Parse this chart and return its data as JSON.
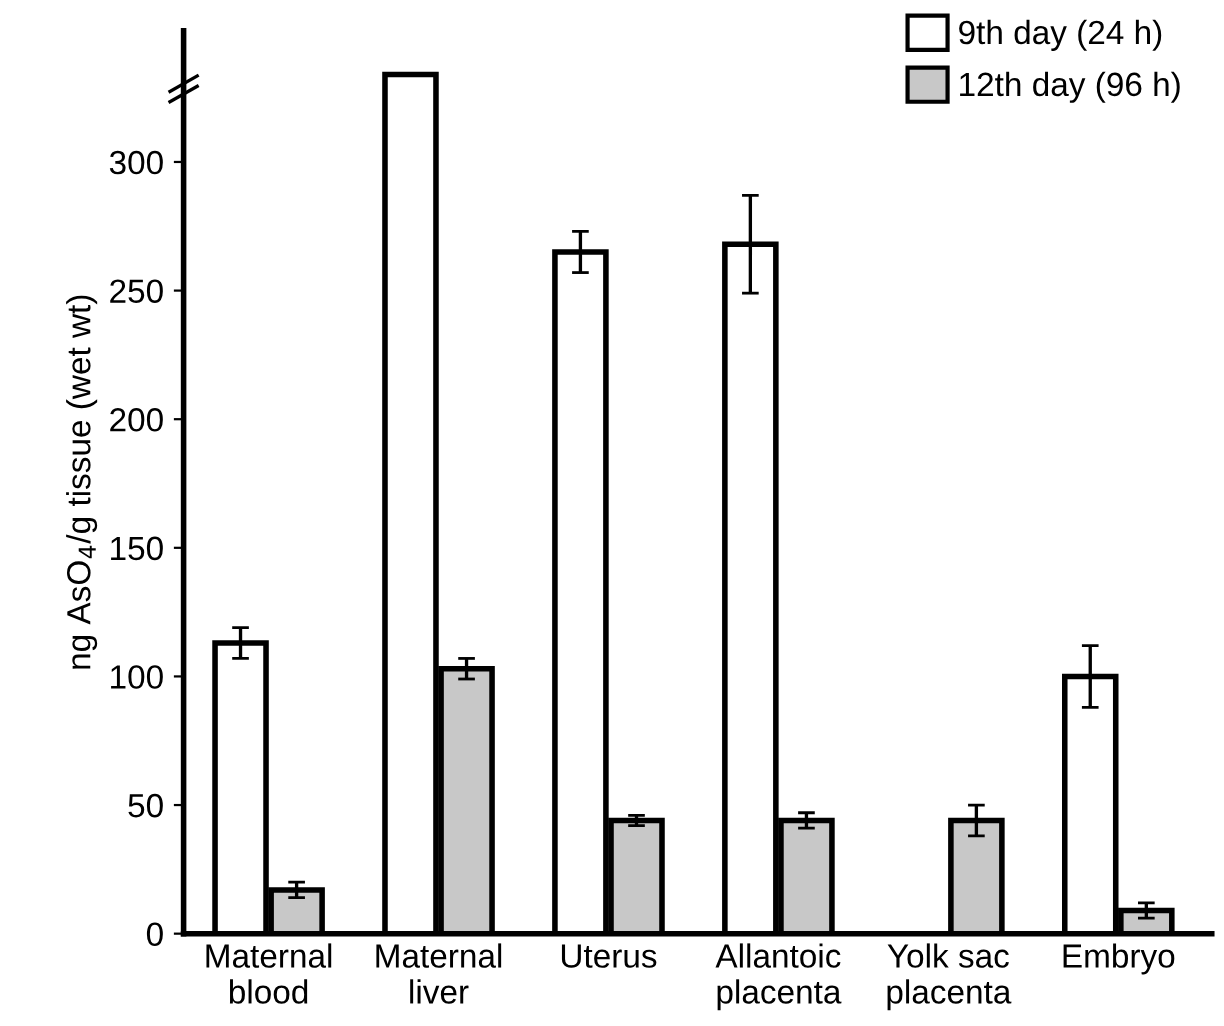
{
  "chart_data": {
    "type": "bar",
    "ylabel": "ng AsO$_{4}$/g tissue (wet wt)",
    "categories": [
      "Maternal\nblood",
      "Maternal\nliver",
      "Uterus",
      "Allantoic\nplacenta",
      "Yolk sac\nplacenta",
      "Embryo"
    ],
    "series": [
      {
        "name": "9th day (24 h)",
        "color": "#ffffff",
        "values": [
          113,
          334,
          265,
          268,
          null,
          100
        ],
        "errors": [
          6,
          null,
          8,
          19,
          null,
          12
        ]
      },
      {
        "name": "12th day (96 h)",
        "color": "#c8c8c8",
        "values": [
          17,
          103,
          44,
          44,
          44,
          9
        ],
        "errors": [
          3,
          4,
          2,
          3,
          6,
          3
        ]
      }
    ],
    "ylim": [
      0,
      351
    ],
    "yticks": [
      0,
      50,
      100,
      150,
      200,
      250,
      300
    ],
    "grid": false,
    "legend": "top right"
  }
}
